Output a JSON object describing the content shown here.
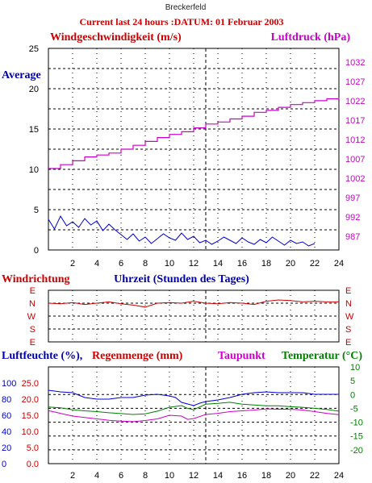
{
  "station": "Breckerfeld",
  "header": "Current last 24 hours :DATUM: 01 Februar 2003",
  "colors": {
    "wind": "#0000cc",
    "pressure": "#cc00cc",
    "direction": "#cc0000",
    "humidity": "#0000cc",
    "rain": "#cc0000",
    "dewpoint": "#cc00cc",
    "temperature": "#008000",
    "grid": "#000000"
  },
  "chart_data": [
    {
      "type": "line",
      "title": "",
      "left_axis_label": "Windgeschwindigkeit (m/s)",
      "right_axis_label": "Luftdruck (hPa)",
      "series_label": "Average",
      "xlabel": "Uhrzeit (Stunden des Tages)",
      "x_ticks": [
        2,
        4,
        6,
        8,
        10,
        12,
        14,
        16,
        18,
        20,
        22,
        24
      ],
      "xlim": [
        0,
        24
      ],
      "ylim_left": [
        0,
        25
      ],
      "left_ticks": [
        0,
        5,
        10,
        15,
        20,
        25
      ],
      "ylim_right": [
        983.5,
        1035.5
      ],
      "right_ticks": [
        987,
        992,
        997,
        1002,
        1007,
        1012,
        1017,
        1022,
        1027,
        1032
      ],
      "grid": true,
      "series": [
        {
          "name": "Windgeschwindigkeit",
          "axis": "left",
          "x": [
            0.0,
            0.5,
            1.0,
            1.5,
            2.0,
            2.5,
            3.0,
            3.5,
            4.0,
            4.5,
            5.0,
            5.5,
            6.0,
            6.5,
            7.0,
            7.5,
            8.0,
            8.5,
            9.0,
            9.5,
            10.0,
            10.5,
            11.0,
            11.5,
            12.0,
            12.5,
            13.0,
            13.5,
            14.0,
            14.5,
            15.0,
            15.5,
            16.0,
            16.5,
            17.0,
            17.5,
            18.0,
            18.5,
            19.0,
            19.5,
            20.0,
            20.5,
            21.0,
            21.5,
            22.0
          ],
          "values": [
            3.8,
            2.6,
            4.2,
            3.0,
            3.5,
            2.8,
            3.9,
            3.1,
            3.6,
            2.4,
            3.2,
            2.5,
            1.9,
            1.3,
            2.0,
            1.1,
            1.6,
            0.8,
            1.4,
            2.0,
            1.5,
            1.2,
            2.1,
            1.3,
            1.7,
            0.9,
            1.2,
            0.7,
            1.1,
            1.6,
            1.2,
            0.8,
            1.5,
            1.0,
            0.7,
            1.3,
            0.9,
            1.6,
            1.1,
            0.6,
            1.2,
            0.8,
            1.0,
            0.5,
            0.8
          ]
        },
        {
          "name": "Luftdruck",
          "axis": "right",
          "x": [
            0,
            1,
            2,
            3,
            4,
            5,
            6,
            7,
            8,
            9,
            10,
            11,
            12,
            13,
            14,
            15,
            16,
            17,
            18,
            19,
            20,
            21,
            22,
            23,
            24
          ],
          "values": [
            1004.5,
            1005.5,
            1006.5,
            1007.5,
            1008.0,
            1008.5,
            1009.5,
            1010.5,
            1011.5,
            1012.5,
            1013.3,
            1014.0,
            1015.0,
            1016.0,
            1016.5,
            1017.3,
            1018.0,
            1019.0,
            1019.5,
            1020.3,
            1021.0,
            1021.5,
            1022.0,
            1022.5,
            1022.8
          ]
        }
      ]
    },
    {
      "type": "line",
      "title": "Windrichtung",
      "y_categories": [
        "E",
        "N",
        "W",
        "S",
        "E"
      ],
      "x": [
        0,
        1,
        2,
        3,
        4,
        5,
        6,
        7,
        8,
        9,
        10,
        11,
        12,
        13,
        14,
        15,
        16,
        17,
        18,
        19,
        20,
        21,
        22,
        23,
        24
      ],
      "values": [
        1.0,
        1.05,
        0.95,
        1.1,
        1.0,
        0.9,
        1.05,
        1.15,
        1.3,
        1.0,
        0.95,
        1.0,
        0.85,
        1.0,
        1.05,
        0.95,
        1.0,
        1.1,
        0.85,
        0.75,
        0.8,
        0.9,
        0.85,
        0.9,
        0.9
      ],
      "ylim": [
        0,
        4
      ],
      "grid": true
    },
    {
      "type": "line",
      "title": "",
      "left_axis_label": "Luftfeuchte (%),",
      "rain_axis_label": "Regenmenge (mm)",
      "dewpoint_label": "Taupunkt",
      "right_axis_label": "Temperatur (°C)",
      "x_ticks": [
        2,
        4,
        6,
        8,
        10,
        12,
        14,
        16,
        18,
        20,
        22,
        24
      ],
      "xlim": [
        0,
        24
      ],
      "humidity_ticks": [
        0,
        20,
        40,
        60,
        80,
        100
      ],
      "rain_ticks": [
        "0.0",
        "5.0",
        "10.0",
        "15.0",
        "20.0",
        "25.0"
      ],
      "temperature_ticks": [
        10,
        5,
        0,
        -5,
        -10,
        -15,
        -20
      ],
      "ylim_humidity": [
        0,
        120
      ],
      "ylim_temperature": [
        -25,
        10
      ],
      "grid": true,
      "series": [
        {
          "name": "Luftfeuchte",
          "axis": "humidity",
          "x": [
            0,
            1,
            2,
            3,
            4,
            5,
            6,
            7,
            8,
            9,
            10,
            10.5,
            11,
            11.5,
            12,
            12.5,
            13,
            14,
            15,
            16,
            17,
            18,
            19,
            20,
            21,
            22,
            23,
            24
          ],
          "values": [
            91,
            89,
            88,
            82,
            80,
            80,
            82,
            82,
            85,
            86,
            84,
            82,
            76,
            74,
            72,
            75,
            77,
            79,
            82,
            86,
            88,
            89,
            88,
            88,
            88,
            86,
            86,
            86
          ]
        },
        {
          "name": "Temperatur",
          "axis": "temperature",
          "x": [
            0,
            1,
            2,
            3,
            4,
            5,
            6,
            7,
            8,
            9,
            10,
            11,
            11.5,
            12,
            13,
            14,
            15,
            16,
            17,
            18,
            19,
            20,
            21,
            22,
            23,
            24
          ],
          "values": [
            -4.5,
            -4.8,
            -5.5,
            -5.9,
            -6.2,
            -6.6,
            -6.9,
            -7.2,
            -7.0,
            -6.0,
            -4.6,
            -4.0,
            -5.0,
            -5.5,
            -3.5,
            -3.2,
            -2.8,
            -3.5,
            -3.8,
            -4.1,
            -4.1,
            -4.4,
            -4.6,
            -5.0,
            -5.4,
            -6.0
          ]
        },
        {
          "name": "Taupunkt",
          "axis": "temperature",
          "x": [
            0,
            1,
            2,
            3,
            4,
            5,
            6,
            7,
            8,
            9,
            10,
            11,
            11.5,
            12,
            13,
            14,
            15,
            16,
            17,
            18,
            19,
            20,
            21,
            22,
            23,
            24
          ],
          "values": [
            -5.8,
            -6.8,
            -7.8,
            -8.3,
            -8.8,
            -9.3,
            -9.6,
            -9.8,
            -9.4,
            -8.8,
            -7.5,
            -7.8,
            -9.0,
            -8.7,
            -7.2,
            -6.8,
            -6.2,
            -5.9,
            -5.6,
            -5.2,
            -5.3,
            -5.3,
            -5.6,
            -6.2,
            -6.8,
            -7.3
          ]
        }
      ]
    }
  ]
}
